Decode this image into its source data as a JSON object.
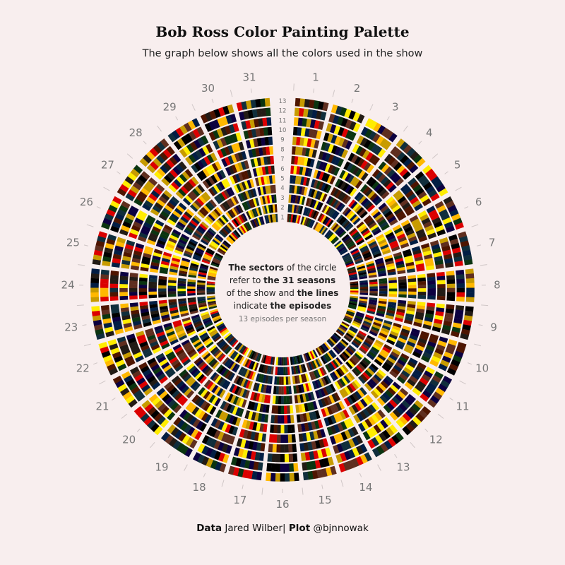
{
  "title": "Bob Ross Color Painting Palette",
  "subtitle": "The graph below shows all the colors used in the show",
  "center_note": {
    "p1b": "The sectors",
    "p1": " of the circle",
    "p2": "refer to ",
    "p2b": "the 31 seasons",
    "p3": "of the show and ",
    "p3b": "the lines",
    "p4": "indicate ",
    "p4b": "the episodes",
    "small": "13 episodes per season"
  },
  "footer": {
    "data_label": "Data",
    "data_value": "Jared Wilber",
    "separator": "|",
    "plot_label": "Plot",
    "plot_value": "@bjnnowak"
  },
  "colors": {
    "background": "#f8eeee",
    "palette": [
      "#4E1500",
      "#221B15",
      "#000000",
      "#DB0000",
      "#C79B00",
      "#FFEC00",
      "#FFB800",
      "#5F2E1F",
      "#0C0040",
      "#102E3C",
      "#021E44",
      "#0A3410"
    ]
  },
  "chart_data": {
    "type": "radial-heatmap",
    "seasons": [
      "1",
      "2",
      "3",
      "4",
      "5",
      "6",
      "7",
      "8",
      "9",
      "10",
      "11",
      "12",
      "13",
      "14",
      "15",
      "16",
      "17",
      "18",
      "19",
      "20",
      "21",
      "22",
      "23",
      "24",
      "25",
      "26",
      "27",
      "28",
      "29",
      "30",
      "31"
    ],
    "episodes": [
      "1",
      "2",
      "3",
      "4",
      "5",
      "6",
      "7",
      "8",
      "9",
      "10",
      "11",
      "12",
      "13"
    ],
    "cell_content": "each cell is one episode of one season, divided into stripes showing the colors used in that painting"
  }
}
